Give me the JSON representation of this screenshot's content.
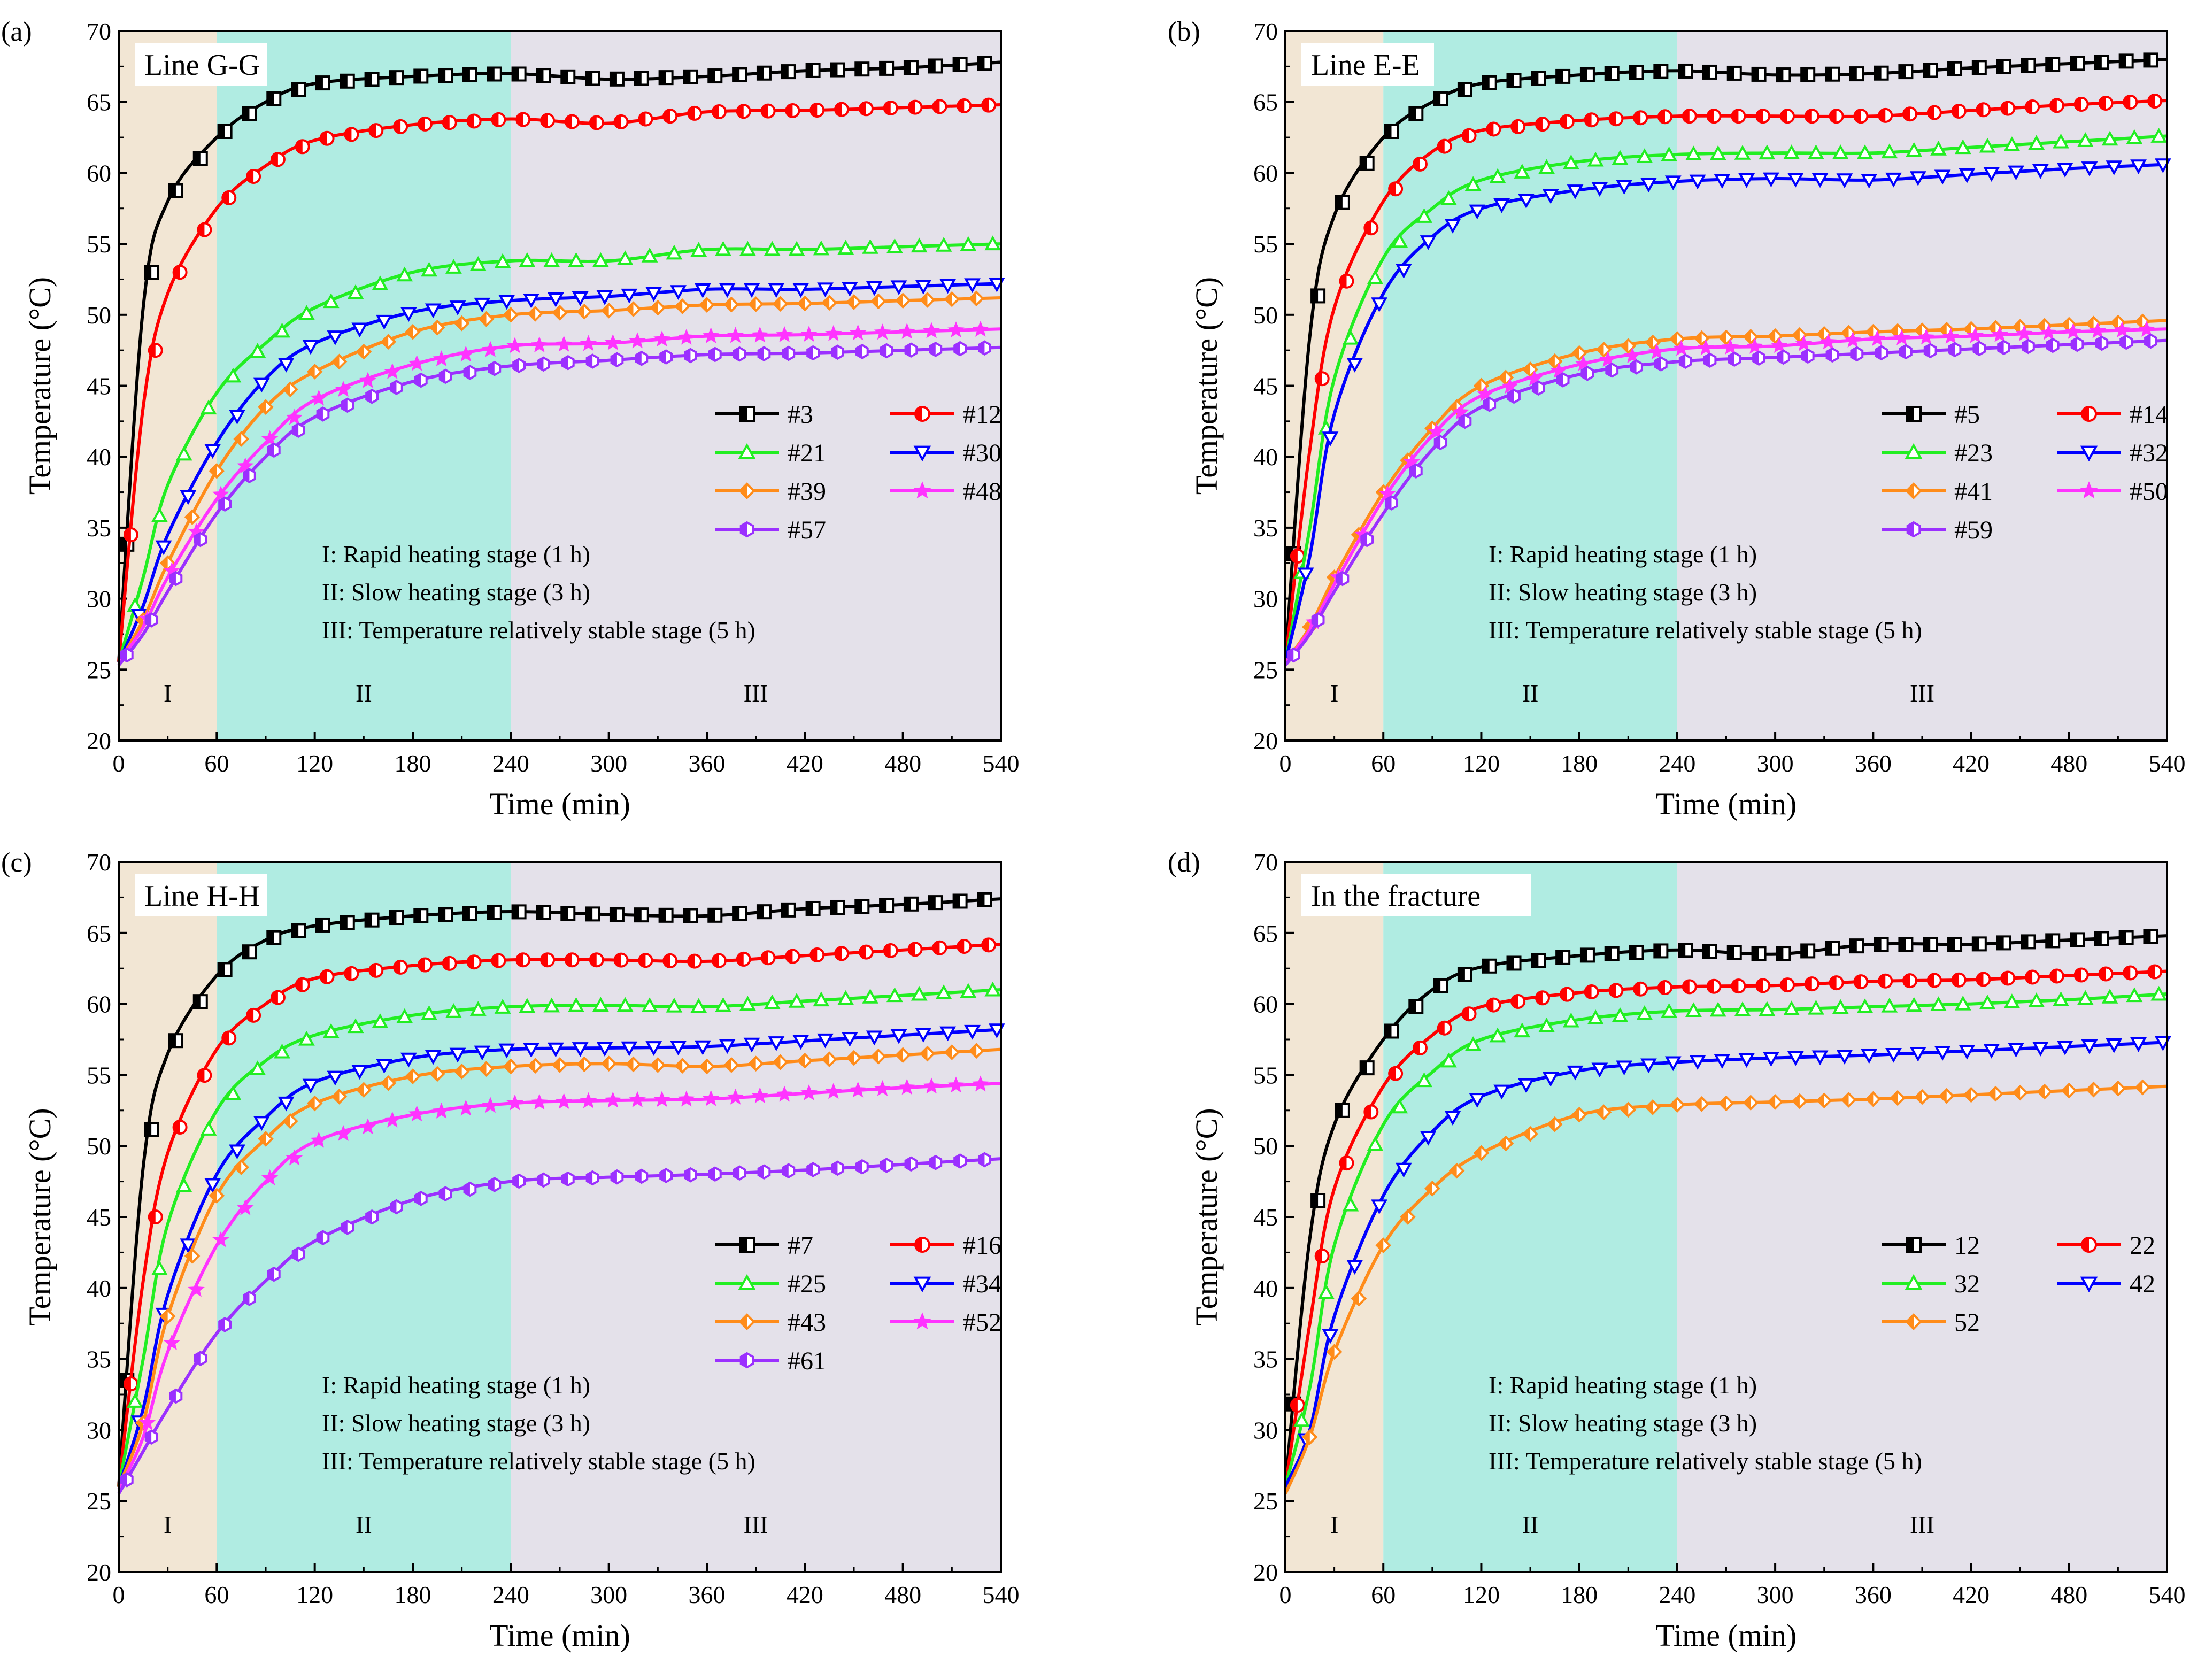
{
  "figure": {
    "stage_notes": [
      "I: Rapid heating stage (1 h)",
      "II: Slow heating stage (3 h)",
      "III: Temperature relatively stable stage (5 h)"
    ],
    "stage_labels": [
      "I",
      "II",
      "III"
    ],
    "stage_colors": [
      "#f2e6d4",
      "#b0ece2",
      "#e4e1ea"
    ]
  },
  "chart_data": [
    {
      "type": "line",
      "panel_label": "(a)",
      "title": "Line G-G",
      "xlabel": "Time (min)",
      "ylabel": "Temperature (°C)",
      "xlim": [
        0,
        540
      ],
      "ylim": [
        20,
        70
      ],
      "xticks": [
        0,
        60,
        120,
        180,
        240,
        300,
        360,
        420,
        480,
        540
      ],
      "yticks": [
        20,
        25,
        30,
        35,
        40,
        45,
        50,
        55,
        60,
        65,
        70
      ],
      "stages": [
        {
          "label": "I",
          "x0": 0,
          "x1": 60
        },
        {
          "label": "II",
          "x0": 60,
          "x1": 240
        },
        {
          "label": "III",
          "x0": 240,
          "x1": 540
        }
      ],
      "series": [
        {
          "name": "#3",
          "color": "#000000",
          "marker": "square",
          "x": [
            0,
            15,
            30,
            60,
            90,
            120,
            180,
            240,
            300,
            360,
            420,
            480,
            540
          ],
          "y": [
            25.5,
            50.5,
            58,
            62.5,
            65,
            66.3,
            66.8,
            67,
            66.6,
            66.8,
            67.2,
            67.4,
            67.8
          ]
        },
        {
          "name": "#12",
          "color": "#ff0000",
          "marker": "circle",
          "x": [
            0,
            15,
            30,
            60,
            90,
            120,
            180,
            240,
            300,
            360,
            420,
            480,
            540
          ],
          "y": [
            25.5,
            43.5,
            51.5,
            57.5,
            60.5,
            62.3,
            63.4,
            63.8,
            63.5,
            64.3,
            64.4,
            64.6,
            64.8
          ]
        },
        {
          "name": "#21",
          "color": "#22ee22",
          "marker": "triangle-up",
          "x": [
            0,
            15,
            30,
            60,
            90,
            120,
            180,
            240,
            300,
            360,
            420,
            480,
            540
          ],
          "y": [
            25.5,
            31.5,
            38,
            44.5,
            48,
            50.5,
            53,
            53.8,
            53.8,
            54.6,
            54.6,
            54.8,
            55
          ]
        },
        {
          "name": "#30",
          "color": "#0000ff",
          "marker": "triangle-down",
          "x": [
            0,
            15,
            30,
            60,
            90,
            120,
            180,
            240,
            300,
            360,
            420,
            480,
            540
          ],
          "y": [
            25.5,
            29.5,
            34.5,
            41,
            45.5,
            48,
            50.2,
            51,
            51.3,
            51.8,
            51.8,
            52,
            52.2
          ]
        },
        {
          "name": "#39",
          "color": "#ff8c1a",
          "marker": "diamond",
          "x": [
            0,
            15,
            30,
            60,
            90,
            120,
            180,
            240,
            300,
            360,
            420,
            480,
            540
          ],
          "y": [
            25.5,
            28.5,
            32.5,
            39,
            43.5,
            46,
            48.8,
            50,
            50.3,
            50.7,
            50.8,
            51,
            51.2
          ]
        },
        {
          "name": "#48",
          "color": "#ff33ff",
          "marker": "star",
          "x": [
            0,
            15,
            30,
            60,
            90,
            120,
            180,
            240,
            300,
            360,
            420,
            480,
            540
          ],
          "y": [
            25.5,
            28,
            31.5,
            37,
            41,
            44,
            46.5,
            47.8,
            48,
            48.5,
            48.6,
            48.8,
            49
          ]
        },
        {
          "name": "#57",
          "color": "#9b30ff",
          "marker": "hexagon",
          "x": [
            0,
            15,
            30,
            60,
            90,
            120,
            180,
            240,
            300,
            360,
            420,
            480,
            540
          ],
          "y": [
            25.3,
            27.5,
            30.5,
            36,
            40,
            42.8,
            45.3,
            46.4,
            46.8,
            47.2,
            47.3,
            47.5,
            47.7
          ]
        }
      ]
    },
    {
      "type": "line",
      "panel_label": "(b)",
      "title": "Line E-E",
      "xlabel": "Time (min)",
      "ylabel": "Temperature (°C)",
      "xlim": [
        0,
        540
      ],
      "ylim": [
        20,
        70
      ],
      "xticks": [
        0,
        60,
        120,
        180,
        240,
        300,
        360,
        420,
        480,
        540
      ],
      "yticks": [
        20,
        25,
        30,
        35,
        40,
        45,
        50,
        55,
        60,
        65,
        70
      ],
      "stages": [
        {
          "label": "I",
          "x0": 0,
          "x1": 60
        },
        {
          "label": "II",
          "x0": 60,
          "x1": 240
        },
        {
          "label": "III",
          "x0": 240,
          "x1": 540
        }
      ],
      "series": [
        {
          "name": "#5",
          "color": "#000000",
          "marker": "square",
          "x": [
            0,
            15,
            30,
            60,
            90,
            120,
            180,
            240,
            300,
            360,
            420,
            480,
            540
          ],
          "y": [
            25.5,
            48.5,
            57,
            62.5,
            65,
            66.3,
            66.9,
            67.2,
            66.9,
            67,
            67.4,
            67.7,
            68
          ]
        },
        {
          "name": "#14",
          "color": "#ff0000",
          "marker": "circle",
          "x": [
            0,
            15,
            30,
            60,
            90,
            120,
            180,
            240,
            300,
            360,
            420,
            480,
            540
          ],
          "y": [
            25.5,
            40.5,
            50.5,
            58,
            61.5,
            63,
            63.7,
            64,
            64,
            64,
            64.4,
            64.8,
            65.1
          ]
        },
        {
          "name": "#23",
          "color": "#22ee22",
          "marker": "triangle-up",
          "x": [
            0,
            15,
            30,
            60,
            90,
            120,
            180,
            240,
            300,
            360,
            420,
            480,
            540
          ],
          "y": [
            25.5,
            35,
            45.5,
            54,
            57.5,
            59.5,
            60.8,
            61.3,
            61.4,
            61.4,
            61.8,
            62.2,
            62.6
          ]
        },
        {
          "name": "#32",
          "color": "#0000ff",
          "marker": "triangle-down",
          "x": [
            0,
            15,
            30,
            60,
            90,
            120,
            180,
            240,
            300,
            360,
            420,
            480,
            540
          ],
          "y": [
            25.5,
            33,
            43,
            51.5,
            55.5,
            57.5,
            58.8,
            59.4,
            59.6,
            59.5,
            59.9,
            60.3,
            60.6
          ]
        },
        {
          "name": "#41",
          "color": "#ff8c1a",
          "marker": "diamond",
          "x": [
            0,
            15,
            30,
            60,
            90,
            120,
            180,
            240,
            300,
            360,
            420,
            480,
            540
          ],
          "y": [
            25.5,
            28,
            31.5,
            37.5,
            42,
            45,
            47.3,
            48.3,
            48.5,
            48.8,
            49,
            49.3,
            49.6
          ]
        },
        {
          "name": "#50",
          "color": "#ff33ff",
          "marker": "star",
          "x": [
            0,
            15,
            30,
            60,
            90,
            120,
            180,
            240,
            300,
            360,
            420,
            480,
            540
          ],
          "y": [
            25.5,
            27.8,
            31,
            37,
            41.5,
            44.3,
            46.5,
            47.6,
            47.8,
            48.3,
            48.5,
            48.8,
            49
          ]
        },
        {
          "name": "#59",
          "color": "#9b30ff",
          "marker": "hexagon",
          "x": [
            0,
            15,
            30,
            60,
            90,
            120,
            180,
            240,
            300,
            360,
            420,
            480,
            540
          ],
          "y": [
            25.3,
            27.5,
            30.5,
            36,
            40.5,
            43.5,
            45.8,
            46.7,
            47,
            47.3,
            47.6,
            47.9,
            48.2
          ]
        }
      ]
    },
    {
      "type": "line",
      "panel_label": "(c)",
      "title": "Line H-H",
      "xlabel": "Time (min)",
      "ylabel": "Temperature (°C)",
      "xlim": [
        0,
        540
      ],
      "ylim": [
        20,
        70
      ],
      "xticks": [
        0,
        60,
        120,
        180,
        240,
        300,
        360,
        420,
        480,
        540
      ],
      "yticks": [
        20,
        25,
        30,
        35,
        40,
        45,
        50,
        55,
        60,
        65,
        70
      ],
      "stages": [
        {
          "label": "I",
          "x0": 0,
          "x1": 60
        },
        {
          "label": "II",
          "x0": 60,
          "x1": 240
        },
        {
          "label": "III",
          "x0": 240,
          "x1": 540
        }
      ],
      "series": [
        {
          "name": "#7",
          "color": "#000000",
          "marker": "square",
          "x": [
            0,
            15,
            30,
            60,
            90,
            120,
            180,
            240,
            300,
            360,
            420,
            480,
            540
          ],
          "y": [
            26,
            48.5,
            56.5,
            62,
            64.5,
            65.5,
            66.2,
            66.5,
            66.3,
            66.2,
            66.7,
            67,
            67.4
          ]
        },
        {
          "name": "#16",
          "color": "#ff0000",
          "marker": "circle",
          "x": [
            0,
            15,
            30,
            60,
            90,
            120,
            180,
            240,
            300,
            360,
            420,
            480,
            540
          ],
          "y": [
            26,
            40.5,
            49.5,
            56.8,
            60,
            61.8,
            62.7,
            63.1,
            63.1,
            63,
            63.4,
            63.8,
            64.2
          ]
        },
        {
          "name": "#25",
          "color": "#22ee22",
          "marker": "triangle-up",
          "x": [
            0,
            15,
            30,
            60,
            90,
            120,
            180,
            240,
            300,
            360,
            420,
            480,
            540
          ],
          "y": [
            26,
            35,
            44.5,
            52.5,
            56,
            57.8,
            59.2,
            59.8,
            59.9,
            59.8,
            60.2,
            60.6,
            61
          ]
        },
        {
          "name": "#34",
          "color": "#0000ff",
          "marker": "triangle-down",
          "x": [
            0,
            15,
            30,
            60,
            90,
            120,
            180,
            240,
            300,
            360,
            420,
            480,
            540
          ],
          "y": [
            26,
            31.5,
            39.5,
            48,
            52,
            54.5,
            56.2,
            56.8,
            56.9,
            57,
            57.4,
            57.8,
            58.2
          ]
        },
        {
          "name": "#43",
          "color": "#ff8c1a",
          "marker": "diamond",
          "x": [
            0,
            15,
            30,
            60,
            90,
            120,
            180,
            240,
            300,
            360,
            420,
            480,
            540
          ],
          "y": [
            26,
            30.5,
            38,
            46.5,
            50.5,
            53,
            54.9,
            55.6,
            55.8,
            55.6,
            56,
            56.4,
            56.8
          ]
        },
        {
          "name": "#52",
          "color": "#ff33ff",
          "marker": "star",
          "x": [
            0,
            15,
            30,
            60,
            90,
            120,
            180,
            240,
            300,
            360,
            420,
            480,
            540
          ],
          "y": [
            25.8,
            29.5,
            35.5,
            43,
            47.5,
            50.3,
            52.2,
            53,
            53.2,
            53.3,
            53.7,
            54.1,
            54.4
          ]
        },
        {
          "name": "#61",
          "color": "#9b30ff",
          "marker": "hexagon",
          "x": [
            0,
            15,
            30,
            60,
            90,
            120,
            180,
            240,
            300,
            360,
            420,
            480,
            540
          ],
          "y": [
            25.5,
            28.5,
            31.5,
            36.8,
            40.5,
            43.3,
            46.2,
            47.5,
            47.8,
            48,
            48.3,
            48.7,
            49.1
          ]
        }
      ]
    },
    {
      "type": "line",
      "panel_label": "(d)",
      "title": "In the fracture",
      "xlabel": "Time (min)",
      "ylabel": "Temperature (°C)",
      "xlim": [
        0,
        540
      ],
      "ylim": [
        20,
        70
      ],
      "xticks": [
        0,
        60,
        120,
        180,
        240,
        300,
        360,
        420,
        480,
        540
      ],
      "yticks": [
        20,
        25,
        30,
        35,
        40,
        45,
        50,
        55,
        60,
        65,
        70
      ],
      "stages": [
        {
          "label": "I",
          "x0": 0,
          "x1": 60
        },
        {
          "label": "II",
          "x0": 60,
          "x1": 240
        },
        {
          "label": "III",
          "x0": 240,
          "x1": 540
        }
      ],
      "series": [
        {
          "name": "12",
          "color": "#000000",
          "marker": "square",
          "x": [
            0,
            15,
            30,
            60,
            90,
            120,
            180,
            240,
            300,
            360,
            420,
            480,
            540
          ],
          "y": [
            26,
            43.5,
            51.5,
            57.5,
            61,
            62.6,
            63.4,
            63.8,
            63.5,
            64.2,
            64.2,
            64.5,
            64.8
          ]
        },
        {
          "name": "22",
          "color": "#ff0000",
          "marker": "circle",
          "x": [
            0,
            15,
            30,
            60,
            90,
            120,
            180,
            240,
            300,
            360,
            420,
            480,
            540
          ],
          "y": [
            26,
            37.5,
            47,
            54.2,
            57.8,
            59.8,
            60.8,
            61.2,
            61.3,
            61.6,
            61.7,
            62,
            62.3
          ]
        },
        {
          "name": "32",
          "color": "#22ee22",
          "marker": "triangle-up",
          "x": [
            0,
            15,
            30,
            60,
            90,
            120,
            180,
            240,
            300,
            360,
            420,
            480,
            540
          ],
          "y": [
            26,
            33,
            43,
            51.5,
            55.2,
            57.5,
            58.9,
            59.5,
            59.6,
            59.8,
            60,
            60.3,
            60.7
          ]
        },
        {
          "name": "42",
          "color": "#0000ff",
          "marker": "triangle-down",
          "x": [
            0,
            15,
            30,
            60,
            90,
            120,
            180,
            240,
            300,
            360,
            420,
            480,
            540
          ],
          "y": [
            26,
            30,
            38,
            46.5,
            51,
            53.5,
            55.3,
            55.9,
            56.2,
            56.4,
            56.7,
            57,
            57.3
          ]
        },
        {
          "name": "52",
          "color": "#ff8c1a",
          "marker": "diamond",
          "x": [
            0,
            15,
            30,
            60,
            90,
            120,
            180,
            240,
            300,
            360,
            420,
            480,
            540
          ],
          "y": [
            25.5,
            29.5,
            35.5,
            43,
            47,
            49.5,
            52.2,
            52.9,
            53.1,
            53.3,
            53.6,
            53.9,
            54.2
          ]
        }
      ]
    }
  ]
}
